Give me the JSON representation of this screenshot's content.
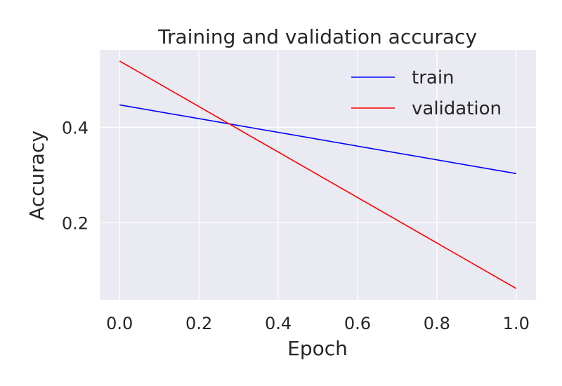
{
  "chart_data": {
    "type": "line",
    "title": "Training and validation accuracy",
    "xlabel": "Epoch",
    "ylabel": "Accuracy",
    "x": [
      0,
      1
    ],
    "series": [
      {
        "name": "train",
        "color": "#0000ff",
        "values": [
          0.447,
          0.303
        ]
      },
      {
        "name": "validation",
        "color": "#ff0000",
        "values": [
          0.539,
          0.062
        ]
      }
    ],
    "xlim": [
      -0.05,
      1.05
    ],
    "ylim": [
      0.0385,
      0.5625
    ],
    "xticks": [
      0.0,
      0.2,
      0.4,
      0.6,
      0.8,
      1.0
    ],
    "xtick_labels": [
      "0.0",
      "0.2",
      "0.4",
      "0.6",
      "0.8",
      "1.0"
    ],
    "yticks": [
      0.2,
      0.4
    ],
    "ytick_labels": [
      "0.2",
      "0.4"
    ],
    "grid": true,
    "legend_position": "top-right",
    "colors": {
      "plot_background": "#eaeaf2",
      "grid": "#ffffff",
      "text": "#262626"
    }
  }
}
